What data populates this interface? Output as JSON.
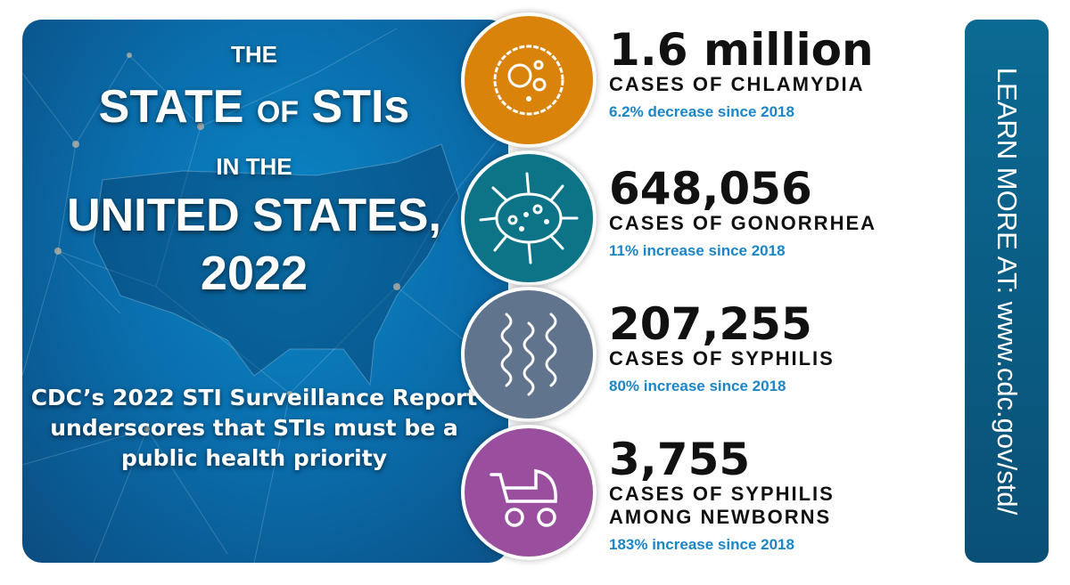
{
  "title": {
    "line1": "THE",
    "state": "STATE",
    "of": "OF",
    "stis": "STIs",
    "line3": "IN THE",
    "line4": "UNITED STATES,",
    "year": "2022"
  },
  "subtitle": "CDC’s 2022 STI Surveillance Report underscores that STIs must be a public health priority",
  "stats": [
    {
      "number": "1.6 million",
      "label": "CASES OF CHLAMYDIA",
      "note": "6.2% decrease since 2018",
      "color": "#d9830a",
      "icon": "bacteria-cell-icon"
    },
    {
      "number": "648,056",
      "label": "CASES OF GONORRHEA",
      "note": "11% increase since 2018",
      "color": "#0d7488",
      "icon": "microbe-icon"
    },
    {
      "number": "207,255",
      "label": "CASES OF SYPHILIS",
      "note": "80% increase since 2018",
      "color": "#60748d",
      "icon": "spirochete-icon"
    },
    {
      "number": "3,755",
      "label": "CASES OF SYPHILIS AMONG NEWBORNS",
      "note": "183% increase since 2018",
      "color": "#9a4e9e",
      "icon": "baby-stroller-icon"
    }
  ],
  "learn_more": "LEARN MORE AT:  www.cdc.gov/std/",
  "colors": {
    "background_blue": "#0a6fae",
    "side_bar": "#0b5e83",
    "note_blue": "#1a86c8"
  }
}
